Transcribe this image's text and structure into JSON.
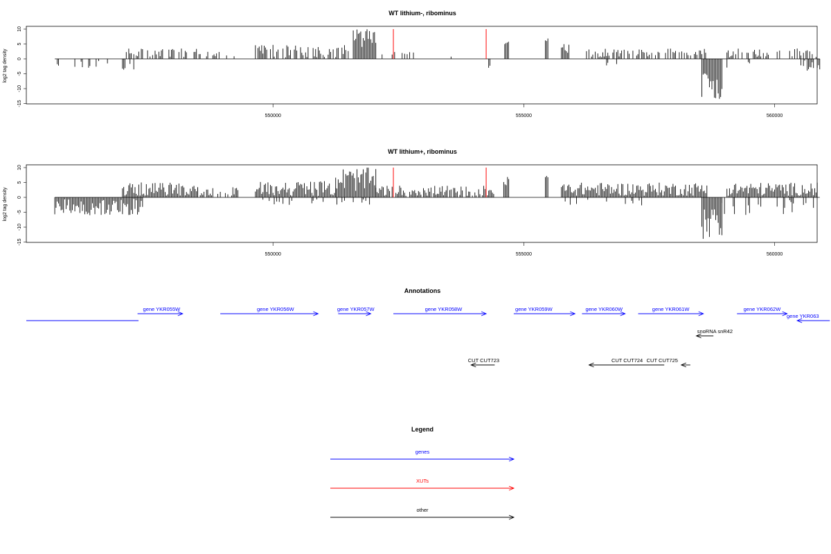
{
  "chart_data": [
    {
      "type": "bar",
      "title": "WT lithium-, ribominus",
      "xlabel": "",
      "ylabel": "log2 tag density",
      "xlim": [
        545000,
        561000
      ],
      "ylim": [
        -15,
        10
      ],
      "yticks": [
        -15,
        -10,
        -5,
        0,
        5,
        10
      ],
      "xticks": [
        550000,
        555000,
        560000
      ],
      "xtick_labels": [
        "550000",
        "555000",
        "560000"
      ],
      "series_color": "#000000",
      "highlight_color": "#ff0000",
      "highlights": [
        {
          "x": 552400,
          "value": 10
        },
        {
          "x": 554250,
          "value": 10
        }
      ],
      "forward_segments": [
        {
          "start": 547000,
          "end": 548700,
          "min": 0.5,
          "max": 3.5,
          "density": 0.5
        },
        {
          "start": 548700,
          "end": 549300,
          "min": 0.5,
          "max": 2.5,
          "density": 0.3
        },
        {
          "start": 549650,
          "end": 551500,
          "min": 0.5,
          "max": 5,
          "density": 0.6
        },
        {
          "start": 551600,
          "end": 552050,
          "min": 4,
          "max": 10,
          "density": 1.0
        },
        {
          "start": 552100,
          "end": 552950,
          "min": 0.5,
          "max": 2.5,
          "density": 0.2
        },
        {
          "start": 553300,
          "end": 553600,
          "min": 0.5,
          "max": 2,
          "density": 0.05
        },
        {
          "start": 554620,
          "end": 554700,
          "min": 4,
          "max": 7,
          "density": 1.0
        },
        {
          "start": 555430,
          "end": 555480,
          "min": 6,
          "max": 8,
          "density": 1.0
        },
        {
          "start": 555750,
          "end": 555920,
          "min": 2,
          "max": 5,
          "density": 0.8
        },
        {
          "start": 556200,
          "end": 558650,
          "min": 0.5,
          "max": 3.5,
          "density": 0.6
        },
        {
          "start": 559050,
          "end": 560850,
          "min": 0.5,
          "max": 3.5,
          "density": 0.6
        }
      ],
      "reverse_segments": [
        {
          "start": 545650,
          "end": 546600,
          "min": 0.5,
          "max": 3,
          "density": 0.3
        },
        {
          "start": 546700,
          "end": 547300,
          "min": 0.5,
          "max": 4,
          "density": 0.3
        },
        {
          "start": 554300,
          "end": 554330,
          "min": 2,
          "max": 3,
          "density": 1.0
        },
        {
          "start": 556500,
          "end": 557300,
          "min": 0.5,
          "max": 3,
          "density": 0.1
        },
        {
          "start": 558550,
          "end": 558950,
          "min": 4,
          "max": 13.5,
          "density": 1.0
        },
        {
          "start": 558950,
          "end": 559500,
          "min": 0.5,
          "max": 3,
          "density": 0.2
        },
        {
          "start": 560500,
          "end": 560900,
          "min": 0.5,
          "max": 4,
          "density": 0.6
        }
      ]
    },
    {
      "type": "bar",
      "title": "WT lithium+, ribominus",
      "xlabel": "",
      "ylabel": "log2 tag density",
      "xlim": [
        545000,
        561000
      ],
      "ylim": [
        -15,
        10
      ],
      "yticks": [
        -15,
        -10,
        -5,
        0,
        5,
        10
      ],
      "xticks": [
        550000,
        555000,
        560000
      ],
      "xtick_labels": [
        "550000",
        "555000",
        "560000"
      ],
      "series_color": "#000000",
      "highlight_color": "#ff0000",
      "highlights": [
        {
          "x": 552400,
          "value": 10
        },
        {
          "x": 554250,
          "value": 10
        }
      ],
      "forward_segments": [
        {
          "start": 547000,
          "end": 548500,
          "min": 0.5,
          "max": 5,
          "density": 1.0
        },
        {
          "start": 548500,
          "end": 549300,
          "min": 0.5,
          "max": 3.5,
          "density": 0.8
        },
        {
          "start": 549650,
          "end": 551250,
          "min": 0.5,
          "max": 5.5,
          "density": 1.0
        },
        {
          "start": 551250,
          "end": 552050,
          "min": 2,
          "max": 10,
          "density": 1.0
        },
        {
          "start": 552050,
          "end": 554400,
          "min": 0.5,
          "max": 4,
          "density": 0.9
        },
        {
          "start": 554600,
          "end": 554700,
          "min": 3,
          "max": 7,
          "density": 1.0
        },
        {
          "start": 555430,
          "end": 555480,
          "min": 6,
          "max": 8,
          "density": 1.0
        },
        {
          "start": 555750,
          "end": 558650,
          "min": 0.5,
          "max": 5,
          "density": 1.0
        },
        {
          "start": 559050,
          "end": 560850,
          "min": 0.5,
          "max": 5,
          "density": 1.0
        }
      ],
      "reverse_segments": [
        {
          "start": 545650,
          "end": 547400,
          "min": 0.5,
          "max": 6,
          "density": 1.0
        },
        {
          "start": 549600,
          "end": 552000,
          "min": 0.5,
          "max": 2.5,
          "density": 0.1
        },
        {
          "start": 555800,
          "end": 557500,
          "min": 0.5,
          "max": 3,
          "density": 0.2
        },
        {
          "start": 558550,
          "end": 558950,
          "min": 4,
          "max": 14.5,
          "density": 1.0
        },
        {
          "start": 558950,
          "end": 560900,
          "min": 0.5,
          "max": 6,
          "density": 0.3
        }
      ]
    }
  ],
  "annotations": {
    "title": "Annotations",
    "features": [
      {
        "label": "",
        "start": 545000,
        "end": 547320,
        "strand": "-",
        "kind": "gene",
        "row": 1,
        "label_x": 0
      },
      {
        "label": "gene YKR055W",
        "start": 547300,
        "end": 548200,
        "strand": "+",
        "kind": "gene",
        "row": 0,
        "label_x": 547780
      },
      {
        "label": "gene YKR056W",
        "start": 548950,
        "end": 550900,
        "strand": "+",
        "kind": "gene",
        "row": 0,
        "label_x": 550050
      },
      {
        "label": "gene YKR057W",
        "start": 551300,
        "end": 551950,
        "strand": "+",
        "kind": "gene",
        "row": 0,
        "label_x": 551650
      },
      {
        "label": "gene YKR058W",
        "start": 552400,
        "end": 554250,
        "strand": "+",
        "kind": "gene",
        "row": 0,
        "label_x": 553400
      },
      {
        "label": "gene YKR059W",
        "start": 554800,
        "end": 556020,
        "strand": "+",
        "kind": "gene",
        "row": 0,
        "label_x": 555200
      },
      {
        "label": "gene YKR060W",
        "start": 556160,
        "end": 557020,
        "strand": "+",
        "kind": "gene",
        "row": 0,
        "label_x": 556600
      },
      {
        "label": "gene YKR061W",
        "start": 557280,
        "end": 558580,
        "strand": "+",
        "kind": "gene",
        "row": 0,
        "label_x": 557930
      },
      {
        "label": "gene YKR062W",
        "start": 559250,
        "end": 560250,
        "strand": "+",
        "kind": "gene",
        "row": 0,
        "label_x": 559750
      },
      {
        "label": "gene YKR063",
        "start": 560450,
        "end": 561100,
        "strand": "-",
        "kind": "gene",
        "row": 1,
        "label_x": 560900
      },
      {
        "label": "snoRNA snR42",
        "start": 558440,
        "end": 558780,
        "strand": "-",
        "kind": "other",
        "row": 2,
        "label_x": 558810
      },
      {
        "label": "CUT CUT723",
        "start": 553950,
        "end": 554420,
        "strand": "-",
        "kind": "other",
        "row": 3,
        "label_x": 554200
      },
      {
        "label": "CUT CUT724",
        "start": 556300,
        "end": 557800,
        "strand": "-",
        "kind": "other",
        "row": 3,
        "label_x": 557060
      },
      {
        "label": "CUT CUT725",
        "start": 558140,
        "end": 558320,
        "strand": "-",
        "kind": "other",
        "row": 3,
        "label_x": 557760
      }
    ]
  },
  "legend": {
    "title": "Legend",
    "items": [
      {
        "label": "genes",
        "color": "#0000ff"
      },
      {
        "label": "XUTs",
        "color": "#ff0000"
      },
      {
        "label": "other",
        "color": "#000000"
      }
    ]
  },
  "colors": {
    "gene": "#0000ff",
    "xut": "#ff0000",
    "other": "#000000"
  }
}
